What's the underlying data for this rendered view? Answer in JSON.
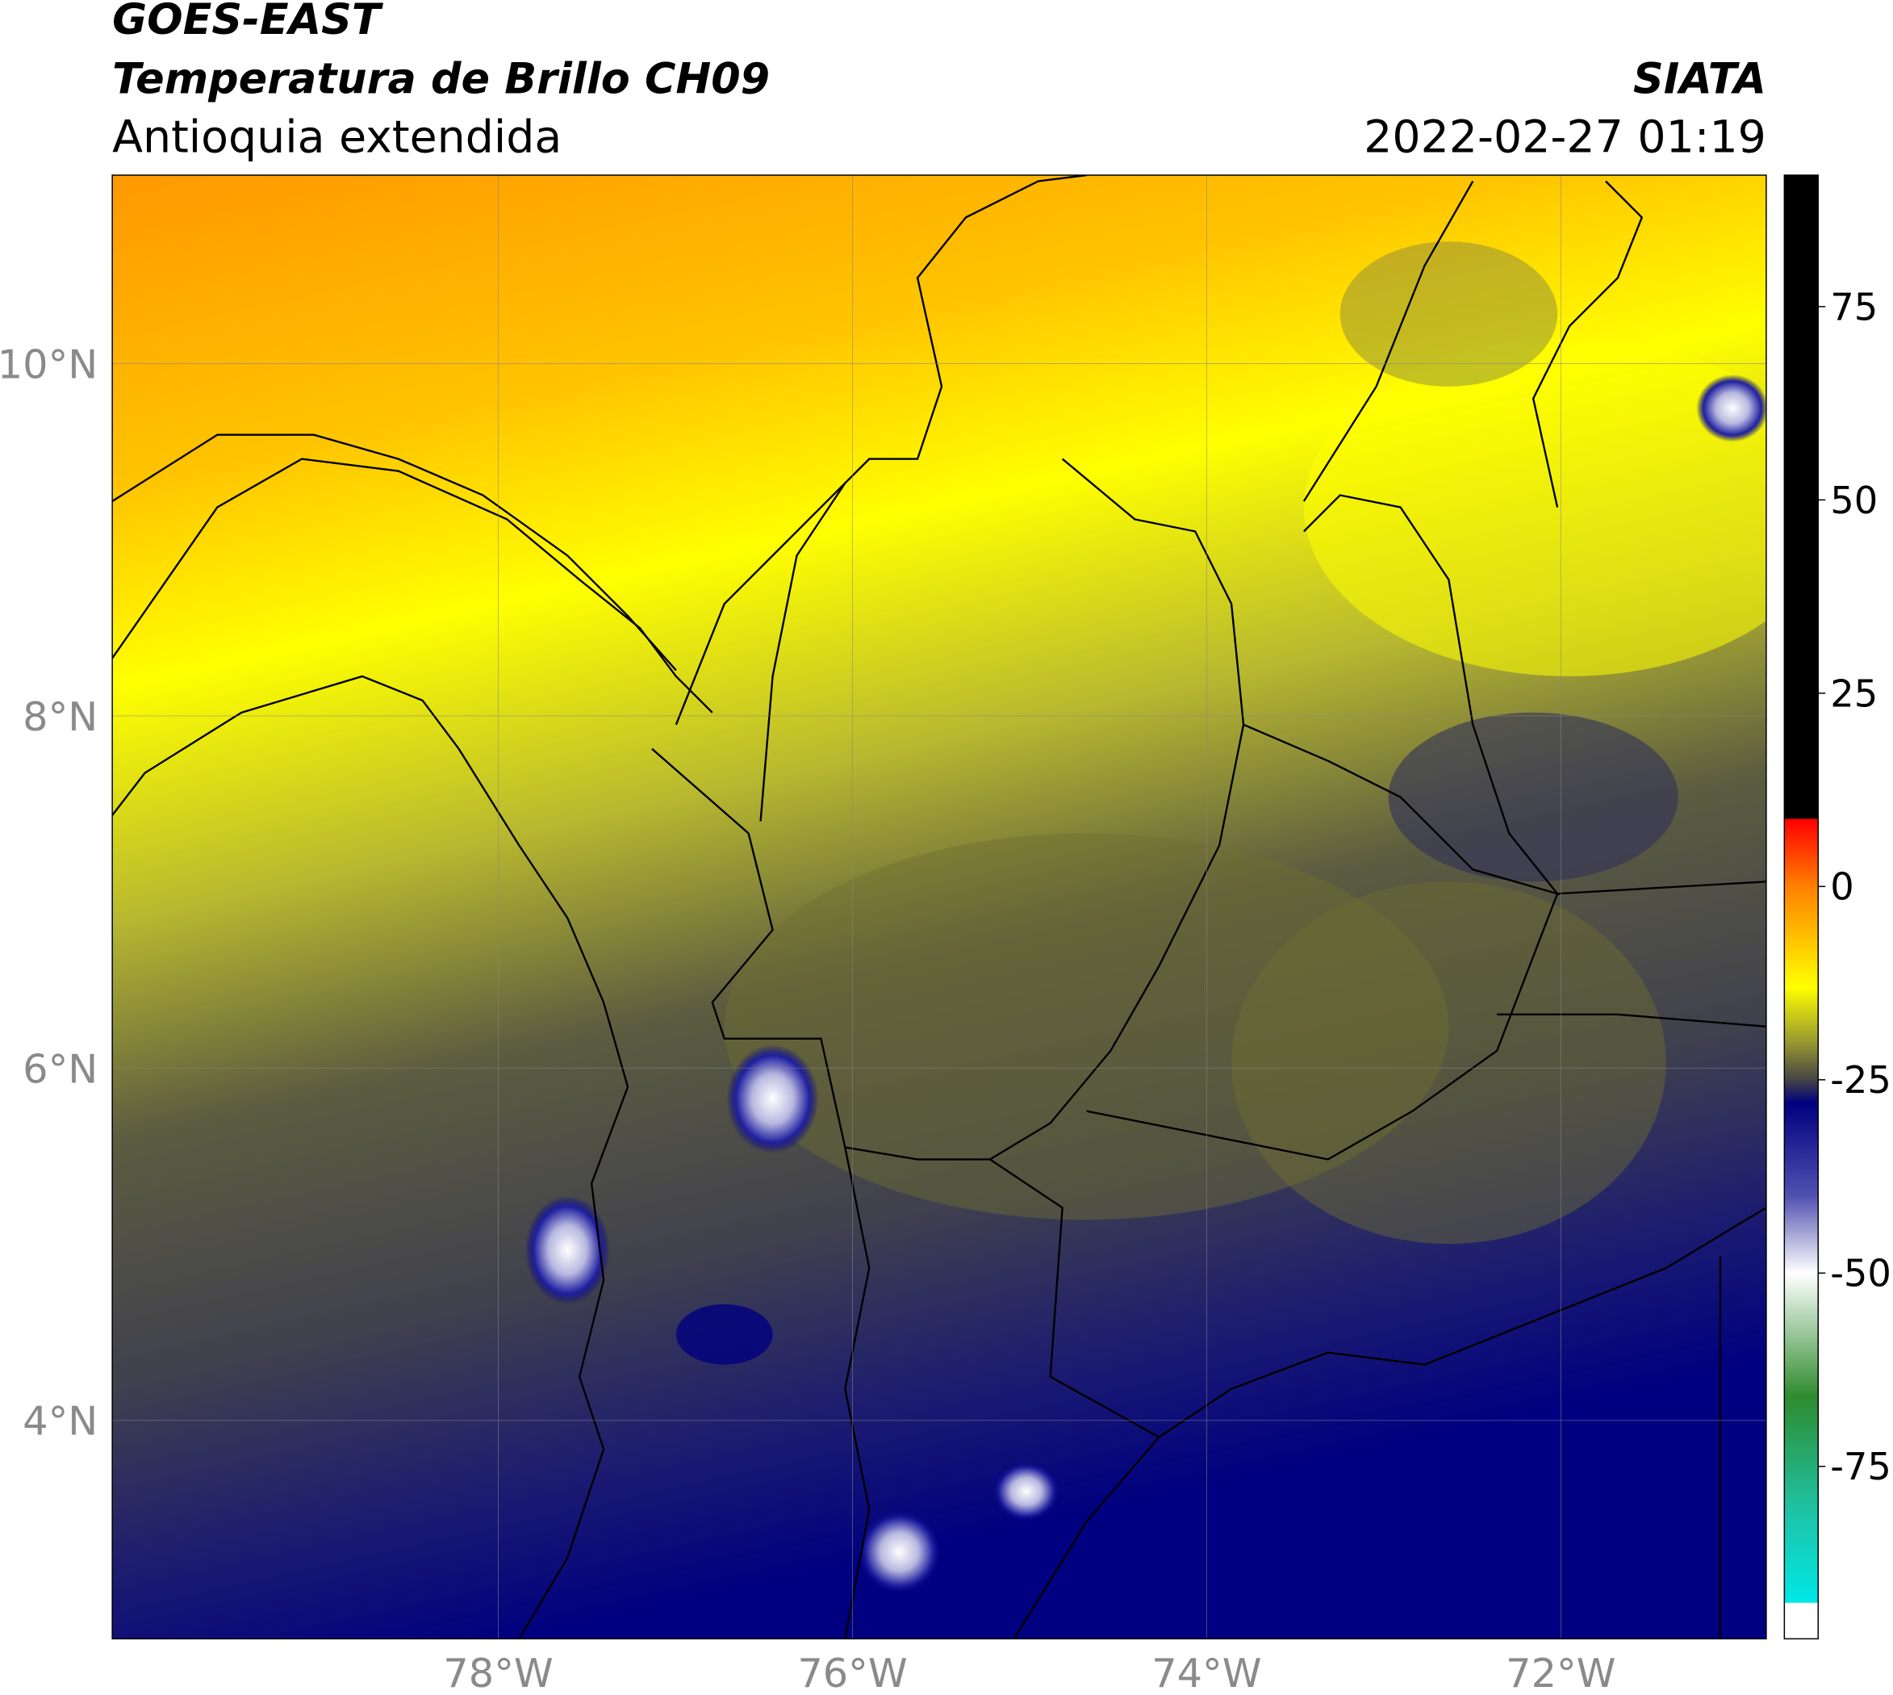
{
  "header": {
    "satellite": "GOES-EAST",
    "product": "Temperatura de Brillo CH09",
    "region": "Antioquia extendida",
    "source": "SIATA",
    "datetime": "2022-02-27 01:19"
  },
  "map": {
    "xlim": [
      -80.18,
      -70.84
    ],
    "ylim": [
      2.76,
      11.07
    ],
    "xticks": [
      {
        "value": -78,
        "label": "78°W"
      },
      {
        "value": -76,
        "label": "76°W"
      },
      {
        "value": -74,
        "label": "74°W"
      },
      {
        "value": -72,
        "label": "72°W"
      }
    ],
    "yticks": [
      {
        "value": 4,
        "label": "4°N"
      },
      {
        "value": 6,
        "label": "6°N"
      },
      {
        "value": 8,
        "label": "8°N"
      },
      {
        "value": 10,
        "label": "10°N"
      }
    ],
    "grid": true
  },
  "colorbar": {
    "lim": [
      -97.3,
      92
    ],
    "ticks": [
      75,
      50,
      25,
      0,
      -25,
      -50,
      -75
    ],
    "stops": [
      {
        "value": 92,
        "color": "#000000"
      },
      {
        "value": 8.8,
        "color": "#000000"
      },
      {
        "value": 8.7,
        "color": "#ff0000"
      },
      {
        "value": 0,
        "color": "#ff8000"
      },
      {
        "value": -13,
        "color": "#ffff00"
      },
      {
        "value": -20,
        "color": "#9a9a30"
      },
      {
        "value": -25,
        "color": "#444444"
      },
      {
        "value": -28,
        "color": "#000080"
      },
      {
        "value": -40,
        "color": "#5050b0"
      },
      {
        "value": -50,
        "color": "#ffffff"
      },
      {
        "value": -66,
        "color": "#2e8b2e"
      },
      {
        "value": -80,
        "color": "#20c0a0"
      },
      {
        "value": -92.6,
        "color": "#00e8e8"
      },
      {
        "value": -92.7,
        "color": "#ffffff"
      },
      {
        "value": -97.3,
        "color": "#ffffff"
      }
    ]
  }
}
